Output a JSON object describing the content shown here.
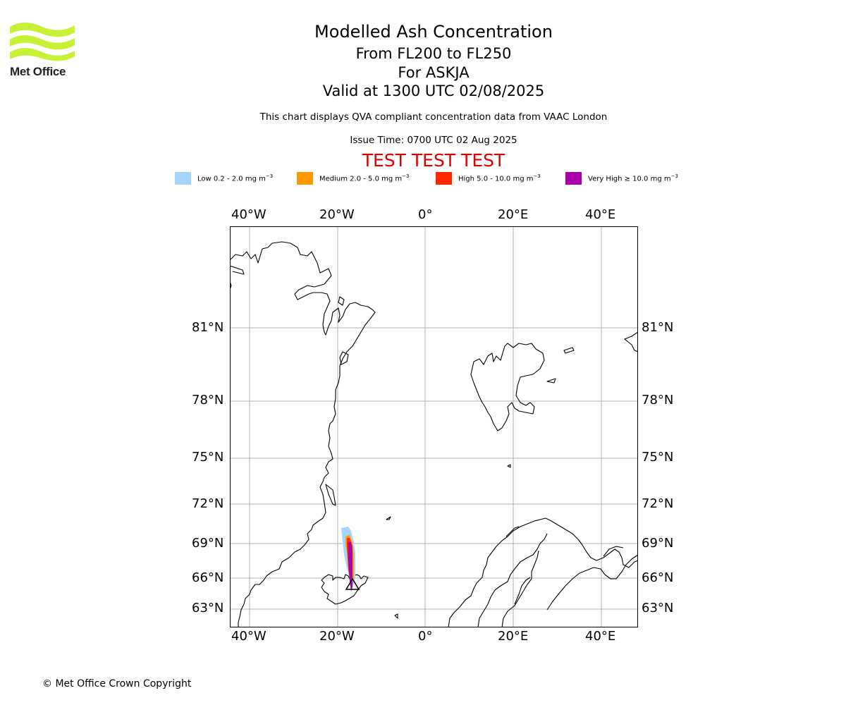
{
  "header": {
    "logo_text": "Met Office",
    "title": "Modelled Ash Concentration",
    "flight_levels": "From FL200 to FL250",
    "volcano": "For ASKJA",
    "valid_time": "Valid at 1300 UTC 02/08/2025",
    "description": "This chart displays QVA compliant concentration data from VAAC London",
    "issue_time": "Issue Time: 0700 UTC 02 Aug 2025",
    "test_banner": "TEST TEST TEST"
  },
  "legend": [
    {
      "label": "Low 0.2 - 2.0 mg m",
      "unit_exp": "−3",
      "color": "#a6d4fa"
    },
    {
      "label": "Medium 2.0 - 5.0 mg m",
      "unit_exp": "−3",
      "color": "#ff9900"
    },
    {
      "label": "High 5.0 - 10.0 mg m",
      "unit_exp": "−3",
      "color": "#ff2800"
    },
    {
      "label": "Very High  ≥  10.0 mg m",
      "unit_exp": "−3",
      "color": "#aa00aa"
    }
  ],
  "map": {
    "lon_ticks": [
      "40°W",
      "20°W",
      "0°",
      "20°E",
      "40°E"
    ],
    "lat_ticks": [
      "81°N",
      "78°N",
      "75°N",
      "72°N",
      "69°N",
      "66°N",
      "63°N"
    ],
    "lon_range": [
      "44.5°W",
      "48°E"
    ],
    "lat_range": [
      "61.5°N",
      "85°N"
    ],
    "grid": true,
    "source_marker": "volcano-triangle"
  },
  "footer": {
    "copyright": "© Met Office Crown Copyright"
  }
}
